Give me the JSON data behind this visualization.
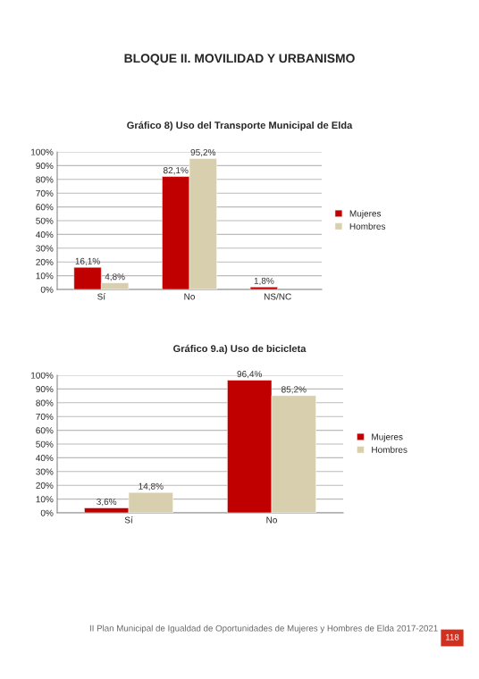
{
  "chart_data": [
    {
      "type": "bar",
      "title": "Gráfico 8) Uso del Transporte Municipal de Elda",
      "annotations": [
        "BLOQUE II. MOVILIDAD Y URBANISMO"
      ],
      "categories": [
        "Sí",
        "No",
        "NS/NC"
      ],
      "series": [
        {
          "name": "Mujeres",
          "color": "#c00000",
          "values": [
            16.1,
            82.1,
            1.8
          ],
          "value_labels": [
            "16,1%",
            "82,1%",
            "1,8%"
          ]
        },
        {
          "name": "Hombres",
          "color": "#d8cfae",
          "values": [
            4.8,
            95.2,
            null
          ],
          "value_labels": [
            "4,8%",
            "95,2%",
            null
          ]
        }
      ],
      "ylim": [
        0,
        100
      ],
      "yticks": [
        {
          "value": 0,
          "label": "0%"
        },
        {
          "value": 10,
          "label": "10%"
        },
        {
          "value": 20,
          "label": "20%"
        },
        {
          "value": 30,
          "label": "30%"
        },
        {
          "value": 40,
          "label": "40%"
        },
        {
          "value": 50,
          "label": "50%"
        },
        {
          "value": 60,
          "label": "60%"
        },
        {
          "value": 70,
          "label": "70%"
        },
        {
          "value": 80,
          "label": "80%"
        },
        {
          "value": 90,
          "label": "90%"
        },
        {
          "value": 100,
          "label": "100%"
        }
      ],
      "grid": "y",
      "legend": "right"
    },
    {
      "type": "bar",
      "title": "Gráfico 9.a) Uso de bicicleta",
      "annotations": [
        "II Plan Municipal de Igualdad de Oportunidades de Mujeres y Hombres de Elda 2017-2021",
        "118"
      ],
      "categories": [
        "Sí",
        "No"
      ],
      "series": [
        {
          "name": "Mujeres",
          "color": "#c00000",
          "values": [
            3.6,
            96.4
          ],
          "value_labels": [
            "3,6%",
            "96,4%"
          ]
        },
        {
          "name": "Hombres",
          "color": "#d8cfae",
          "values": [
            14.8,
            85.2
          ],
          "value_labels": [
            "14,8%",
            "85,2%"
          ]
        }
      ],
      "ylim": [
        0,
        100
      ],
      "yticks": [
        {
          "value": 0,
          "label": "0%"
        },
        {
          "value": 10,
          "label": "10%"
        },
        {
          "value": 20,
          "label": "20%"
        },
        {
          "value": 30,
          "label": "30%"
        },
        {
          "value": 40,
          "label": "40%"
        },
        {
          "value": 50,
          "label": "50%"
        },
        {
          "value": 60,
          "label": "60%"
        },
        {
          "value": 70,
          "label": "70%"
        },
        {
          "value": 80,
          "label": "80%"
        },
        {
          "value": 90,
          "label": "90%"
        },
        {
          "value": 100,
          "label": "100%"
        }
      ],
      "grid": "y",
      "legend": "right"
    }
  ]
}
